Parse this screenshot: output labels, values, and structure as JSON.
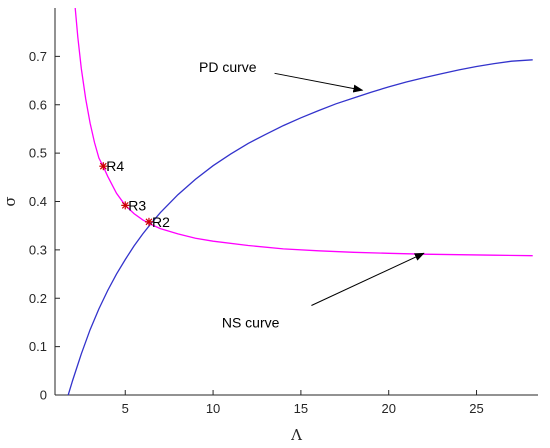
{
  "chart_data": {
    "type": "line",
    "title": "",
    "xlabel": "Λ",
    "ylabel": "σ",
    "xlim": [
      1,
      28.5
    ],
    "ylim": [
      0,
      0.8
    ],
    "xticks": [
      5,
      10,
      15,
      20,
      25
    ],
    "yticks": [
      0,
      0.1,
      0.2,
      0.3,
      0.4,
      0.5,
      0.6,
      0.7
    ],
    "grid": false,
    "series": [
      {
        "color": "#3333cc",
        "x": [
          1.75,
          2,
          2.5,
          3,
          3.5,
          4,
          4.5,
          5,
          5.5,
          6,
          6.5,
          7,
          8,
          9,
          10,
          11,
          12,
          13,
          14,
          15,
          16,
          17,
          18,
          19,
          20,
          21,
          22,
          23,
          24,
          25,
          26,
          27,
          28.2
        ],
        "y": [
          0.0,
          0.03,
          0.085,
          0.135,
          0.178,
          0.216,
          0.25,
          0.28,
          0.308,
          0.333,
          0.356,
          0.377,
          0.414,
          0.446,
          0.474,
          0.498,
          0.52,
          0.539,
          0.557,
          0.573,
          0.588,
          0.602,
          0.614,
          0.626,
          0.637,
          0.647,
          0.656,
          0.664,
          0.672,
          0.679,
          0.685,
          0.69,
          0.693
        ]
      },
      {
        "color": "#ff00ff",
        "x": [
          2.15,
          2.3,
          2.5,
          2.75,
          3,
          3.25,
          3.5,
          3.75,
          4,
          4.5,
          5,
          5.5,
          6,
          6.5,
          7,
          8,
          9,
          10,
          12,
          14,
          16,
          18,
          20,
          22,
          24,
          26,
          28.2
        ],
        "y": [
          0.8,
          0.74,
          0.675,
          0.612,
          0.562,
          0.522,
          0.49,
          0.472,
          0.452,
          0.417,
          0.392,
          0.375,
          0.362,
          0.352,
          0.344,
          0.333,
          0.324,
          0.318,
          0.309,
          0.302,
          0.298,
          0.295,
          0.293,
          0.291,
          0.29,
          0.289,
          0.288
        ]
      }
    ],
    "points": [
      {
        "label": "R4",
        "x": 3.75,
        "y": 0.473
      },
      {
        "label": "R3",
        "x": 5.0,
        "y": 0.392
      },
      {
        "label": "R2",
        "x": 6.35,
        "y": 0.358
      }
    ],
    "point_color": "#cc0000",
    "annotations": [
      {
        "text": "PD curve",
        "text_x": 9.2,
        "text_y": 0.668,
        "arrow_from": [
          13.5,
          0.665
        ],
        "arrow_to": [
          18.5,
          0.63
        ]
      },
      {
        "text": "NS curve",
        "text_x": 10.5,
        "text_y": 0.14,
        "arrow_from": [
          15.6,
          0.185
        ],
        "arrow_to": [
          22.0,
          0.293
        ]
      }
    ]
  }
}
